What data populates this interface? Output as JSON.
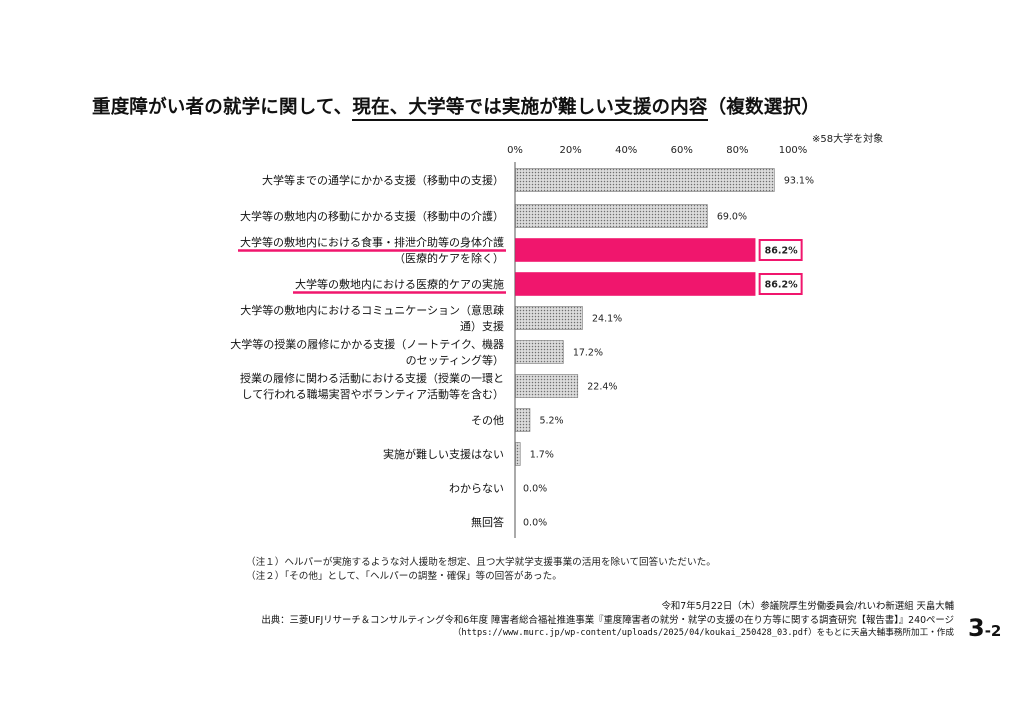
{
  "header": {
    "title_part1": "重度障がい者の就学に関して、",
    "title_part2": "現在、大学等では実施が難しい支援の内容",
    "title_part3": "（複数選択）",
    "target_note": "※58大学を対象"
  },
  "chart_data": {
    "type": "bar",
    "orientation": "horizontal",
    "title": "重度障がい者の就学に関して、現在、大学等では実施が難しい支援の内容（複数選択）",
    "xlim": [
      0,
      100
    ],
    "x_ticks": [
      "0%",
      "20%",
      "40%",
      "60%",
      "80%",
      "100%"
    ],
    "categories": [
      [
        "大学等までの通学にかかる支援（移動中の支援）"
      ],
      [
        "大学等の敷地内の移動にかかる支援（移動中の介護）"
      ],
      [
        "大学等の敷地内における食事・排泄介助等の身体介護",
        "（医療的ケアを除く）"
      ],
      [
        "大学等の敷地内における医療的ケアの実施"
      ],
      [
        "大学等の敷地内におけるコミュニケーション（意思疎",
        "通）支援"
      ],
      [
        "大学等の授業の履修にかかる支援（ノートテイク、機器",
        "のセッティング等）"
      ],
      [
        "授業の履修に関わる活動における支援（授業の一環と",
        "して行われる職場実習やボランティア活動等を含む）"
      ],
      [
        "その他"
      ],
      [
        "実施が難しい支援はない"
      ],
      [
        "わからない"
      ],
      [
        "無回答"
      ]
    ],
    "values": [
      93.1,
      69.0,
      86.2,
      86.2,
      24.1,
      17.2,
      22.4,
      5.2,
      1.7,
      0.0,
      0.0
    ],
    "value_labels": [
      "93.1%",
      "69.0%",
      "86.2%",
      "86.2%",
      "24.1%",
      "17.2%",
      "22.4%",
      "5.2%",
      "1.7%",
      "0.0%",
      "0.0%"
    ],
    "highlighted": [
      false,
      false,
      true,
      true,
      false,
      false,
      false,
      false,
      false,
      false,
      false
    ],
    "colors": {
      "normal_fill": "#d9d9d9",
      "normal_dot": "#6e6e6e",
      "highlight": "#f0166d",
      "axis": "#555555"
    }
  },
  "notes": [
    "（注１）ヘルパーが実施するような対人援助を想定、且つ大学就学支援事業の活用を除いて回答いただいた。",
    "（注２）「その他」として、「ヘルパーの調整・確保」等の回答があった。"
  ],
  "credit": {
    "line1": "令和7年5月22日（木）参議院厚生労働委員会/れいわ新選組 天畠大輔",
    "line2": "出典：三菱UFJリサーチ＆コンサルティング令和6年度 障害者総合福祉推進事業『重度障害者の就労・就学の支援の在り方等に関する調査研究【報告書】』240ページ",
    "line3": "（https://www.murc.jp/wp-content/uploads/2025/04/koukai_250428_03.pdf）をもとに天畠大輔事務所加工・作成"
  },
  "page_number": {
    "main": "3",
    "sub": "-2"
  }
}
